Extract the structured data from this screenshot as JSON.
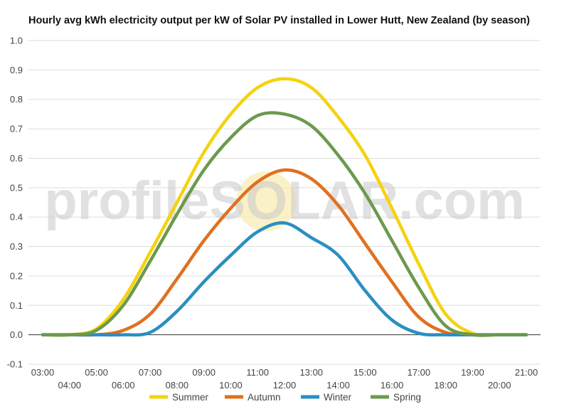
{
  "chart_data": {
    "type": "line",
    "title": "Hourly avg kWh electricity output per kW of Solar PV installed in Lower Hutt, New Zealand (by season)",
    "xlabel": "",
    "ylabel": "",
    "x": [
      "03:00",
      "04:00",
      "05:00",
      "06:00",
      "07:00",
      "08:00",
      "09:00",
      "10:00",
      "11:00",
      "12:00",
      "13:00",
      "14:00",
      "15:00",
      "16:00",
      "17:00",
      "18:00",
      "19:00",
      "20:00",
      "21:00"
    ],
    "ylim": [
      -0.1,
      1.0
    ],
    "yticks": [
      "-0.1",
      "0.0",
      "0.1",
      "0.2",
      "0.3",
      "0.4",
      "0.5",
      "0.6",
      "0.7",
      "0.8",
      "0.9",
      "1.0"
    ],
    "grid": true,
    "legend_position": "bottom",
    "watermark": "profileSOLAR.com",
    "series": [
      {
        "name": "Summer",
        "color": "#f5d20f",
        "values": [
          0.0,
          0.0,
          0.02,
          0.12,
          0.28,
          0.45,
          0.62,
          0.75,
          0.84,
          0.87,
          0.84,
          0.74,
          0.61,
          0.43,
          0.24,
          0.07,
          0.005,
          0.0,
          0.0
        ]
      },
      {
        "name": "Autumn",
        "color": "#e07020",
        "values": [
          0.0,
          0.0,
          0.0,
          0.015,
          0.07,
          0.19,
          0.32,
          0.43,
          0.52,
          0.56,
          0.53,
          0.44,
          0.31,
          0.18,
          0.06,
          0.008,
          0.0,
          0.0,
          0.0
        ]
      },
      {
        "name": "Winter",
        "color": "#2a8fc1",
        "values": [
          0.0,
          0.0,
          0.0,
          0.0,
          0.008,
          0.08,
          0.18,
          0.27,
          0.35,
          0.38,
          0.33,
          0.27,
          0.15,
          0.05,
          0.005,
          0.0,
          0.0,
          0.0,
          0.0
        ]
      },
      {
        "name": "Spring",
        "color": "#6b9a4e",
        "values": [
          0.0,
          0.0,
          0.015,
          0.1,
          0.25,
          0.41,
          0.56,
          0.67,
          0.745,
          0.75,
          0.71,
          0.61,
          0.48,
          0.32,
          0.16,
          0.03,
          0.0,
          0.0,
          0.0
        ]
      }
    ]
  }
}
